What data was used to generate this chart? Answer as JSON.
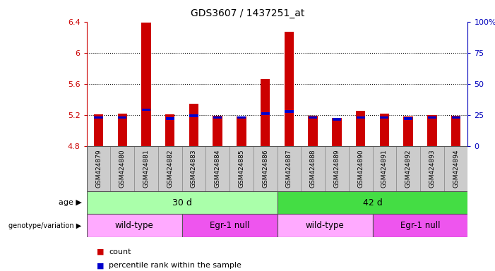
{
  "title": "GDS3607 / 1437251_at",
  "samples": [
    "GSM424879",
    "GSM424880",
    "GSM424881",
    "GSM424882",
    "GSM424883",
    "GSM424884",
    "GSM424885",
    "GSM424886",
    "GSM424887",
    "GSM424888",
    "GSM424889",
    "GSM424890",
    "GSM424891",
    "GSM424892",
    "GSM424893",
    "GSM424894"
  ],
  "count_values": [
    5.21,
    5.22,
    6.39,
    5.21,
    5.35,
    5.19,
    5.18,
    5.66,
    6.27,
    5.19,
    5.17,
    5.26,
    5.22,
    5.18,
    5.2,
    5.19
  ],
  "percentile_values": [
    5.17,
    5.17,
    5.27,
    5.16,
    5.19,
    5.17,
    5.17,
    5.22,
    5.25,
    5.17,
    5.15,
    5.17,
    5.17,
    5.16,
    5.17,
    5.17
  ],
  "base_value": 4.8,
  "ylim_left": [
    4.8,
    6.4
  ],
  "ylim_right": [
    0,
    100
  ],
  "yticks_left": [
    4.8,
    5.2,
    5.6,
    6.0,
    6.4
  ],
  "yticks_right": [
    0,
    25,
    50,
    75,
    100
  ],
  "ytick_labels_left": [
    "4.8",
    "5.2",
    "5.6",
    "6",
    "6.4"
  ],
  "ytick_labels_right": [
    "0",
    "25",
    "50",
    "75",
    "100%"
  ],
  "bar_color": "#cc0000",
  "percentile_color": "#0000cc",
  "bar_width": 0.4,
  "age_groups": [
    {
      "label": "30 d",
      "start": 0,
      "end": 7,
      "color": "#aaffaa"
    },
    {
      "label": "42 d",
      "start": 8,
      "end": 15,
      "color": "#44dd44"
    }
  ],
  "genotype_groups": [
    {
      "label": "wild-type",
      "start": 0,
      "end": 3,
      "color": "#ffaaff"
    },
    {
      "label": "Egr-1 null",
      "start": 4,
      "end": 7,
      "color": "#ee55ee"
    },
    {
      "label": "wild-type",
      "start": 8,
      "end": 11,
      "color": "#ffaaff"
    },
    {
      "label": "Egr-1 null",
      "start": 12,
      "end": 15,
      "color": "#ee55ee"
    }
  ],
  "legend_count_color": "#cc0000",
  "legend_percentile_color": "#0000cc",
  "age_label": "age",
  "genotype_label": "genotype/variation",
  "legend_count_text": "count",
  "legend_percentile_text": "percentile rank within the sample",
  "title_fontsize": 10,
  "axis_color_left": "#cc0000",
  "axis_color_right": "#0000bb",
  "sample_label_bg": "#cccccc"
}
